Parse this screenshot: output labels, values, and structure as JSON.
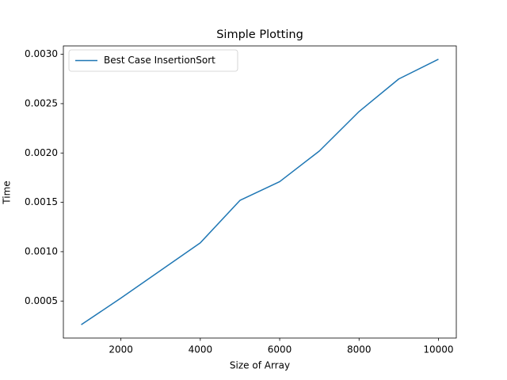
{
  "chart_data": {
    "type": "line",
    "title": "Simple Plotting",
    "xlabel": "Size of Array",
    "ylabel": "Time",
    "x": [
      1000,
      2000,
      3000,
      4000,
      5000,
      6000,
      7000,
      8000,
      9000,
      10000
    ],
    "series": [
      {
        "name": "Best Case InsertionSort",
        "color": "#1f77b4",
        "values": [
          0.00026,
          0.00053,
          0.00081,
          0.00109,
          0.00152,
          0.00171,
          0.00202,
          0.00242,
          0.00275,
          0.00295
        ]
      }
    ],
    "xlim": [
      550,
      10450
    ],
    "xticks": [
      2000,
      4000,
      6000,
      8000,
      10000
    ],
    "ylim": [
      0.000125,
      0.003085
    ],
    "yticks": [
      0.0005,
      {
        "value": 0.001,
        "label": "0.0010"
      },
      0.0015,
      {
        "value": 0.002,
        "label": "0.0020"
      },
      0.0025,
      {
        "value": 0.003,
        "label": "0.0030"
      }
    ],
    "grid": false,
    "legend": "upper left"
  }
}
